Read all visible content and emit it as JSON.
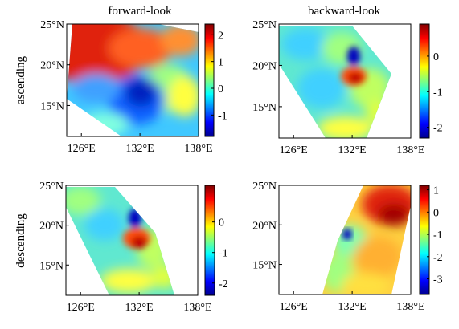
{
  "column_titles": [
    "forward-look",
    "backward-look"
  ],
  "row_labels": [
    "ascending",
    "descending"
  ],
  "lat_ticks": [
    "25°N",
    "20°N",
    "15°N"
  ],
  "lon_ticks": [
    "126°E",
    "132°E",
    "138°E"
  ],
  "colormap": [
    "#00008f",
    "#0000ff",
    "#0080ff",
    "#00ffff",
    "#80ff80",
    "#ffff00",
    "#ff8000",
    "#ff0000",
    "#800000"
  ],
  "panels": [
    {
      "id": "ascending-forward",
      "row": "ascending",
      "column": "forward-look",
      "colorbar": {
        "min": -1.8,
        "max": 2.4,
        "ticks": [
          2,
          1,
          0,
          -1
        ]
      },
      "features": [
        {
          "type": "high",
          "lon": 130.5,
          "lat": 22.8,
          "value": 2.1
        },
        {
          "type": "low",
          "lon": 132.0,
          "lat": 15.5,
          "value": -1.6
        }
      ]
    },
    {
      "id": "ascending-backward",
      "row": "ascending",
      "column": "backward-look",
      "colorbar": {
        "min": -2.3,
        "max": 0.9,
        "ticks": [
          0,
          -1,
          -2
        ]
      },
      "features": [
        {
          "type": "high",
          "lon": 132.2,
          "lat": 18.6,
          "value": 0.7
        },
        {
          "type": "low",
          "lon": 132.4,
          "lat": 21.0,
          "value": -2.0
        }
      ]
    },
    {
      "id": "descending-forward",
      "row": "descending",
      "column": "forward-look",
      "colorbar": {
        "min": -2.4,
        "max": 1.2,
        "ticks": [
          0,
          -1,
          -2
        ]
      },
      "features": [
        {
          "type": "high",
          "lon": 132.6,
          "lat": 18.6,
          "value": 0.9
        },
        {
          "type": "low",
          "lon": 132.2,
          "lat": 21.3,
          "value": -2.1
        }
      ]
    },
    {
      "id": "descending-backward",
      "row": "descending",
      "column": "backward-look",
      "colorbar": {
        "min": -3.7,
        "max": 1.2,
        "ticks": [
          1,
          0,
          -1,
          -2,
          -3
        ]
      },
      "features": [
        {
          "type": "high",
          "lon": 134.0,
          "lat": 22.0,
          "value": 1.0
        },
        {
          "type": "low",
          "lon": 131.0,
          "lat": 19.5,
          "value": -3.0
        }
      ]
    }
  ]
}
